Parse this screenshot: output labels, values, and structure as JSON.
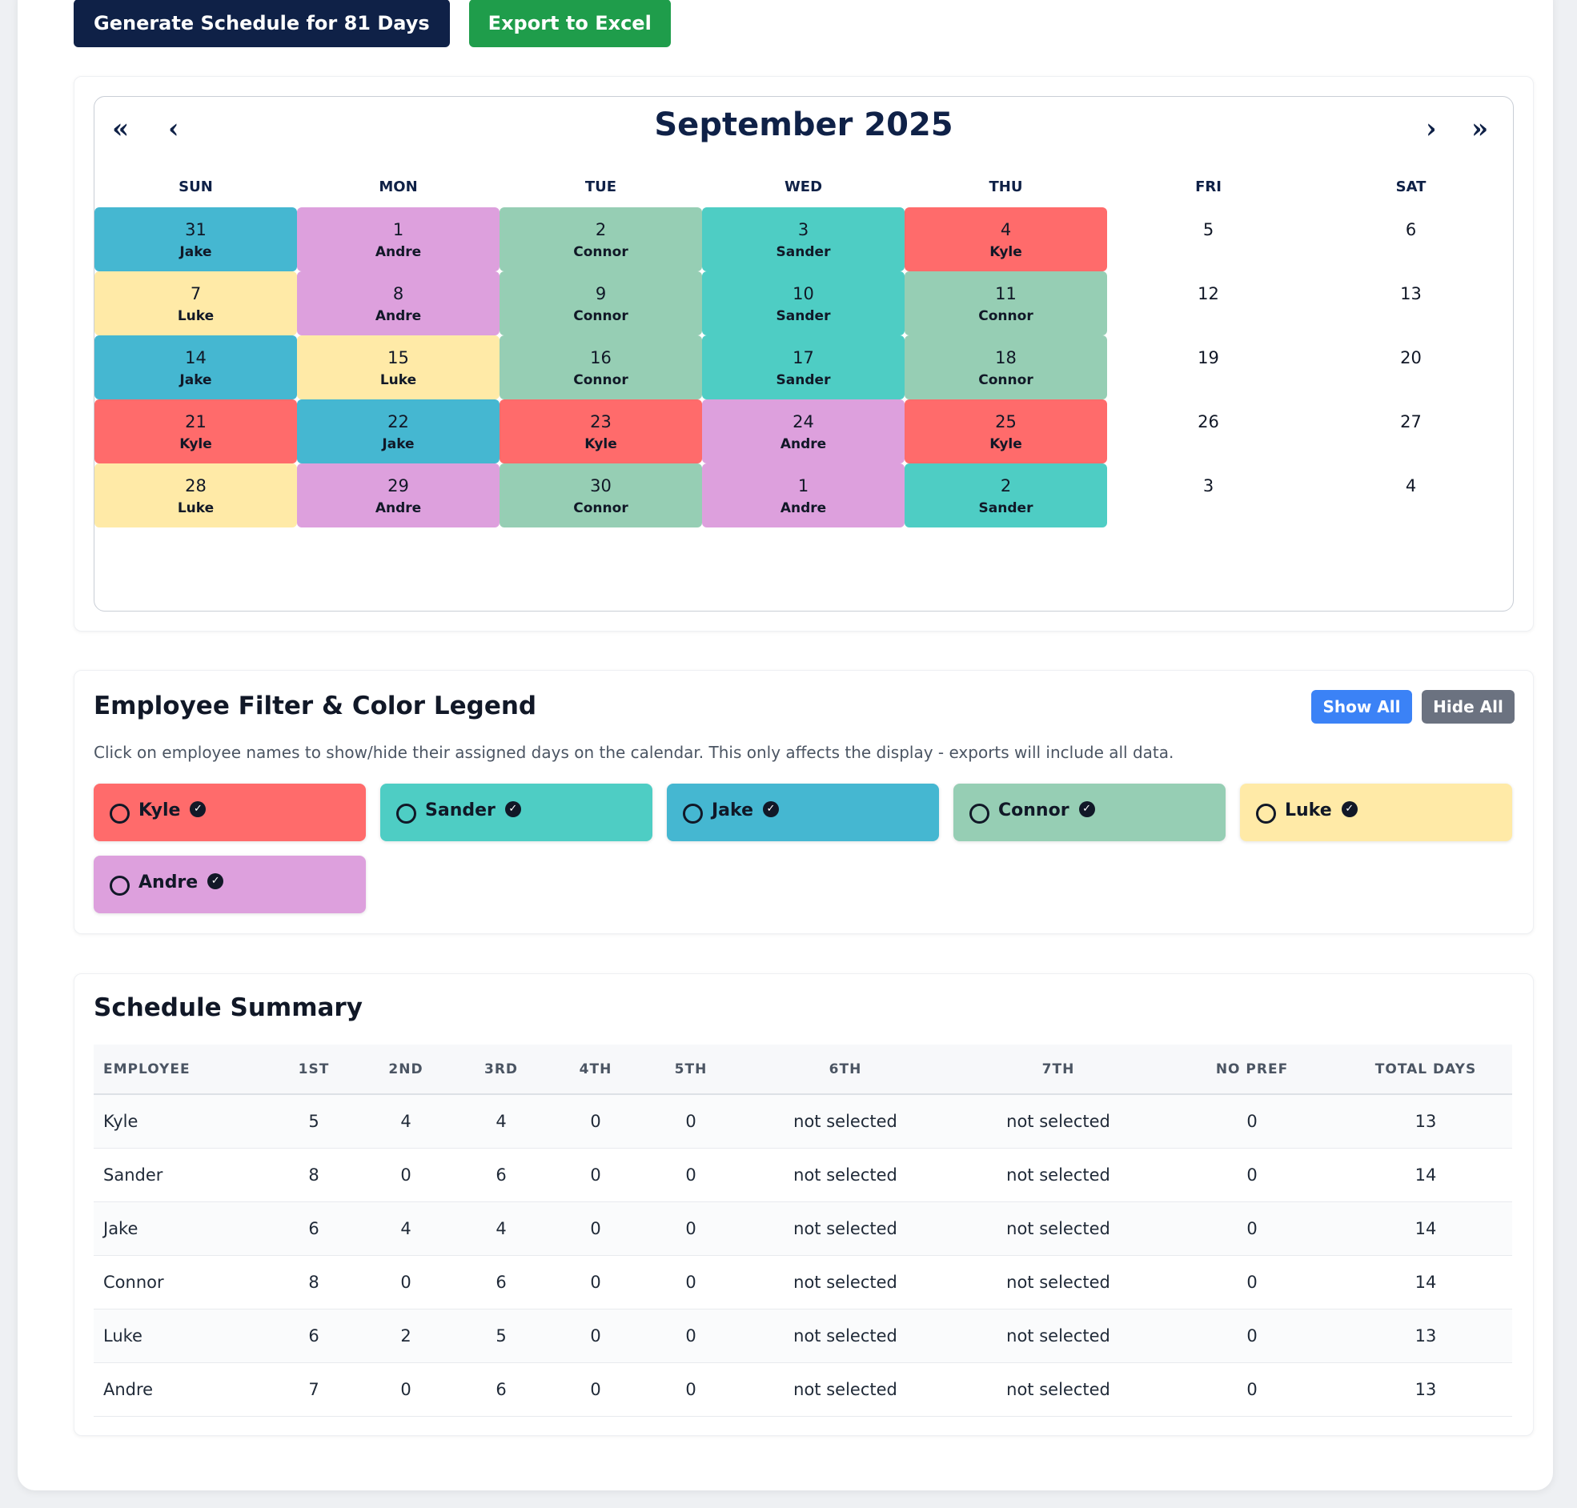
{
  "toolbar": {
    "generate_label": "Generate Schedule for 81 Days",
    "export_label": "Export to Excel"
  },
  "calendar": {
    "title": "September 2025",
    "nav": {
      "first": "«",
      "prev": "‹",
      "next": "›",
      "last": "»"
    },
    "weekdays": [
      "SUN",
      "MON",
      "TUE",
      "WED",
      "THU",
      "FRI",
      "SAT"
    ],
    "weeks": [
      [
        {
          "day": "31",
          "employee": "Jake"
        },
        {
          "day": "1",
          "employee": "Andre"
        },
        {
          "day": "2",
          "employee": "Connor"
        },
        {
          "day": "3",
          "employee": "Sander"
        },
        {
          "day": "4",
          "employee": "Kyle"
        },
        {
          "day": "5",
          "employee": ""
        },
        {
          "day": "6",
          "employee": ""
        }
      ],
      [
        {
          "day": "7",
          "employee": "Luke"
        },
        {
          "day": "8",
          "employee": "Andre"
        },
        {
          "day": "9",
          "employee": "Connor"
        },
        {
          "day": "10",
          "employee": "Sander"
        },
        {
          "day": "11",
          "employee": "Connor"
        },
        {
          "day": "12",
          "employee": ""
        },
        {
          "day": "13",
          "employee": ""
        }
      ],
      [
        {
          "day": "14",
          "employee": "Jake"
        },
        {
          "day": "15",
          "employee": "Luke"
        },
        {
          "day": "16",
          "employee": "Connor"
        },
        {
          "day": "17",
          "employee": "Sander"
        },
        {
          "day": "18",
          "employee": "Connor"
        },
        {
          "day": "19",
          "employee": ""
        },
        {
          "day": "20",
          "employee": ""
        }
      ],
      [
        {
          "day": "21",
          "employee": "Kyle"
        },
        {
          "day": "22",
          "employee": "Jake"
        },
        {
          "day": "23",
          "employee": "Kyle"
        },
        {
          "day": "24",
          "employee": "Andre"
        },
        {
          "day": "25",
          "employee": "Kyle"
        },
        {
          "day": "26",
          "employee": ""
        },
        {
          "day": "27",
          "employee": ""
        }
      ],
      [
        {
          "day": "28",
          "employee": "Luke"
        },
        {
          "day": "29",
          "employee": "Andre"
        },
        {
          "day": "30",
          "employee": "Connor"
        },
        {
          "day": "1",
          "employee": "Andre"
        },
        {
          "day": "2",
          "employee": "Sander"
        },
        {
          "day": "3",
          "employee": ""
        },
        {
          "day": "4",
          "employee": ""
        }
      ]
    ]
  },
  "colors": {
    "Kyle": "#ff6b6b",
    "Sander": "#4ecdc4",
    "Jake": "#45b7d1",
    "Connor": "#96ceb4",
    "Luke": "#ffeaa7",
    "Andre": "#dda0dd",
    "show_all": "#3b82f6",
    "hide_all": "#6b7280"
  },
  "legend": {
    "title": "Employee Filter & Color Legend",
    "show_all_label": "Show All",
    "hide_all_label": "Hide All",
    "description": "Click on employee names to show/hide their assigned days on the calendar. This only affects the display - exports will include all data.",
    "employees": [
      {
        "name": "Kyle",
        "color": "#ff6b6b"
      },
      {
        "name": "Sander",
        "color": "#4ecdc4"
      },
      {
        "name": "Jake",
        "color": "#45b7d1"
      },
      {
        "name": "Connor",
        "color": "#96ceb4"
      },
      {
        "name": "Luke",
        "color": "#ffeaa7"
      },
      {
        "name": "Andre",
        "color": "#dda0dd"
      }
    ]
  },
  "summary": {
    "title": "Schedule Summary",
    "columns": [
      "Employee",
      "1st",
      "2nd",
      "3rd",
      "4th",
      "5th",
      "6th",
      "7th",
      "No Pref",
      "Total Days"
    ],
    "rows": [
      [
        "Kyle",
        "5",
        "4",
        "4",
        "0",
        "0",
        "not selected",
        "not selected",
        "0",
        "13"
      ],
      [
        "Sander",
        "8",
        "0",
        "6",
        "0",
        "0",
        "not selected",
        "not selected",
        "0",
        "14"
      ],
      [
        "Jake",
        "6",
        "4",
        "4",
        "0",
        "0",
        "not selected",
        "not selected",
        "0",
        "14"
      ],
      [
        "Connor",
        "8",
        "0",
        "6",
        "0",
        "0",
        "not selected",
        "not selected",
        "0",
        "14"
      ],
      [
        "Luke",
        "6",
        "2",
        "5",
        "0",
        "0",
        "not selected",
        "not selected",
        "0",
        "13"
      ],
      [
        "Andre",
        "7",
        "0",
        "6",
        "0",
        "0",
        "not selected",
        "not selected",
        "0",
        "13"
      ]
    ]
  }
}
